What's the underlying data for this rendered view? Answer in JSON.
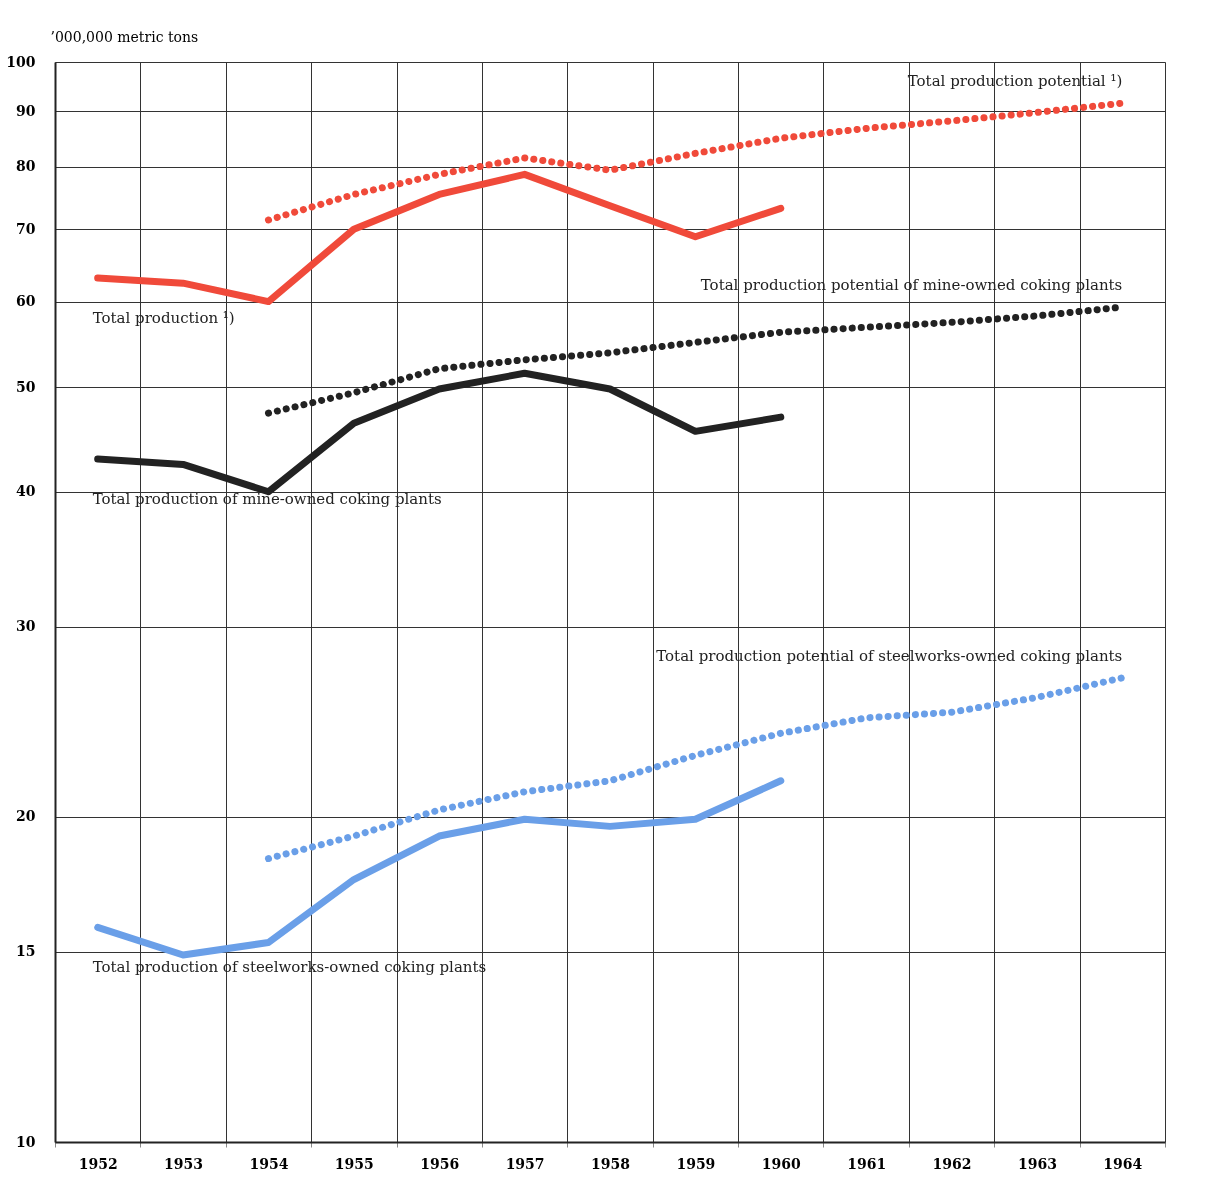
{
  "chart_data": {
    "type": "line",
    "ylabel": "’000,000 metric tons",
    "categories": [
      "1952",
      "1953",
      "1954",
      "1955",
      "1956",
      "1957",
      "1958",
      "1959",
      "1960",
      "1961",
      "1962",
      "1963",
      "1964"
    ],
    "log": true,
    "ylim": [
      10,
      100
    ],
    "yticks": [
      10,
      15,
      20,
      30,
      40,
      50,
      60,
      70,
      80,
      90,
      100
    ],
    "grid": true,
    "series": [
      {
        "name": "Total production ¹)",
        "color": "#f04a3a",
        "line_style": "solid",
        "values": [
          63.1,
          62.4,
          60,
          70,
          75.4,
          78.7,
          73.6,
          68.9,
          73.2,
          null,
          null,
          null,
          null
        ]
      },
      {
        "name": "Total production potential ¹)",
        "color": "#f04a3a",
        "line_style": "dotted",
        "values": [
          null,
          null,
          71.4,
          75.4,
          78.7,
          81.5,
          79.4,
          82.3,
          85,
          86.8,
          88.2,
          89.8,
          91.6
        ]
      },
      {
        "name": "Total production of mine-owned coking plants",
        "color": "#222222",
        "line_style": "solid",
        "values": [
          42.9,
          42.4,
          40,
          46.3,
          49.8,
          51.5,
          49.8,
          45.5,
          46.9,
          null,
          null,
          null,
          null
        ]
      },
      {
        "name": "Total production potential of mine-owned coking plants",
        "color": "#222222",
        "line_style": "dotted",
        "values": [
          null,
          null,
          47.3,
          49.4,
          52,
          53,
          53.8,
          55,
          56.2,
          56.8,
          57.4,
          58.2,
          59.3
        ]
      },
      {
        "name": "Total production of steelworks-owned coking plants",
        "color": "#6a9fe8",
        "line_style": "solid",
        "values": [
          15.8,
          14.9,
          15.3,
          17.5,
          19.2,
          19.9,
          19.6,
          19.9,
          21.6,
          null,
          null,
          null,
          null
        ]
      },
      {
        "name": "Total production potential of steelworks-owned coking plants",
        "color": "#6a9fe8",
        "line_style": "dotted",
        "values": [
          null,
          null,
          18.3,
          19.2,
          20.3,
          21.1,
          21.6,
          22.8,
          23.9,
          24.7,
          25.0,
          25.8,
          26.9
        ]
      }
    ]
  }
}
